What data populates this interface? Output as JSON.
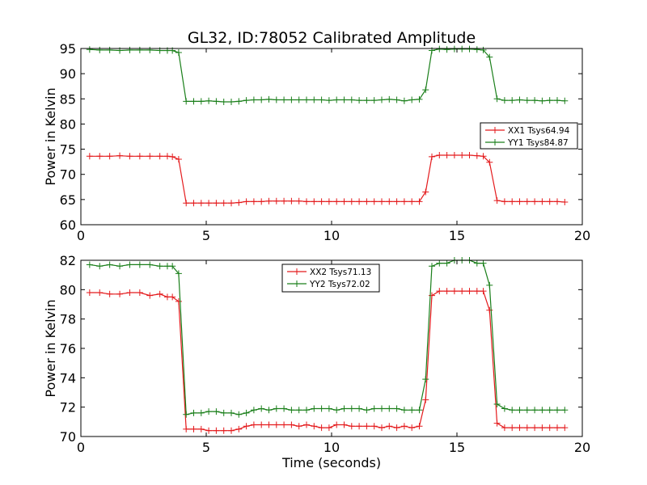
{
  "chart_data": [
    {
      "type": "line",
      "title": "GL32, ID:78052 Calibrated Amplitude",
      "xlabel": "",
      "ylabel": "Power in Kelvin",
      "xlim": [
        0,
        20
      ],
      "ylim": [
        60,
        95
      ],
      "xticks": [
        0,
        5,
        10,
        15,
        20
      ],
      "yticks": [
        60,
        65,
        70,
        75,
        80,
        85,
        90,
        95
      ],
      "grid": false,
      "legend_position": "center-right",
      "x": [
        0.35,
        0.75,
        1.15,
        1.55,
        1.95,
        2.35,
        2.75,
        3.15,
        3.45,
        3.65,
        3.9,
        4.2,
        4.5,
        4.8,
        5.1,
        5.4,
        5.7,
        6.0,
        6.3,
        6.6,
        6.9,
        7.2,
        7.5,
        7.8,
        8.1,
        8.4,
        8.7,
        9.0,
        9.3,
        9.6,
        9.9,
        10.2,
        10.5,
        10.8,
        11.1,
        11.4,
        11.7,
        12.0,
        12.3,
        12.6,
        12.9,
        13.2,
        13.5,
        13.75,
        14.0,
        14.3,
        14.6,
        14.9,
        15.2,
        15.5,
        15.8,
        16.05,
        16.3,
        16.6,
        16.9,
        17.2,
        17.5,
        17.8,
        18.1,
        18.4,
        18.7,
        19.0,
        19.3
      ],
      "series": [
        {
          "name": "XX1 Tsys64.94",
          "color": "#e41a1c",
          "values": [
            73.6,
            73.6,
            73.6,
            73.7,
            73.6,
            73.6,
            73.6,
            73.6,
            73.6,
            73.5,
            73.0,
            64.3,
            64.3,
            64.3,
            64.3,
            64.3,
            64.3,
            64.3,
            64.4,
            64.6,
            64.6,
            64.6,
            64.7,
            64.7,
            64.7,
            64.7,
            64.7,
            64.6,
            64.6,
            64.6,
            64.6,
            64.6,
            64.6,
            64.6,
            64.6,
            64.6,
            64.6,
            64.6,
            64.6,
            64.6,
            64.6,
            64.6,
            64.6,
            66.5,
            73.5,
            73.8,
            73.8,
            73.8,
            73.8,
            73.8,
            73.7,
            73.6,
            72.4,
            64.8,
            64.6,
            64.6,
            64.6,
            64.6,
            64.6,
            64.6,
            64.6,
            64.6,
            64.5
          ]
        },
        {
          "name": "YY1 Tsys84.87",
          "color": "#1a7f1a",
          "values": [
            94.8,
            94.7,
            94.7,
            94.6,
            94.7,
            94.7,
            94.7,
            94.6,
            94.6,
            94.6,
            94.2,
            84.5,
            84.5,
            84.5,
            84.6,
            84.5,
            84.4,
            84.4,
            84.5,
            84.7,
            84.8,
            84.8,
            84.9,
            84.8,
            84.8,
            84.8,
            84.8,
            84.8,
            84.8,
            84.8,
            84.7,
            84.8,
            84.8,
            84.8,
            84.7,
            84.7,
            84.7,
            84.8,
            84.9,
            84.8,
            84.6,
            84.8,
            84.9,
            86.8,
            94.6,
            94.9,
            94.8,
            94.9,
            94.9,
            94.9,
            94.8,
            94.7,
            93.3,
            85.0,
            84.7,
            84.7,
            84.8,
            84.7,
            84.7,
            84.6,
            84.7,
            84.7,
            84.6
          ]
        }
      ]
    },
    {
      "type": "line",
      "title": "",
      "xlabel": "Time (seconds)",
      "ylabel": "Power in Kelvin",
      "xlim": [
        0,
        20
      ],
      "ylim": [
        70,
        82
      ],
      "xticks": [
        0,
        5,
        10,
        15,
        20
      ],
      "yticks": [
        70,
        72,
        74,
        76,
        78,
        80,
        82
      ],
      "grid": false,
      "legend_position": "top-center",
      "x": [
        0.35,
        0.75,
        1.15,
        1.55,
        1.95,
        2.35,
        2.75,
        3.15,
        3.45,
        3.65,
        3.9,
        4.2,
        4.5,
        4.8,
        5.1,
        5.4,
        5.7,
        6.0,
        6.3,
        6.6,
        6.9,
        7.2,
        7.5,
        7.8,
        8.1,
        8.4,
        8.7,
        9.0,
        9.3,
        9.6,
        9.9,
        10.2,
        10.5,
        10.8,
        11.1,
        11.4,
        11.7,
        12.0,
        12.3,
        12.6,
        12.9,
        13.2,
        13.5,
        13.75,
        14.0,
        14.3,
        14.6,
        14.9,
        15.2,
        15.5,
        15.8,
        16.05,
        16.3,
        16.6,
        16.9,
        17.2,
        17.5,
        17.8,
        18.1,
        18.4,
        18.7,
        19.0,
        19.3
      ],
      "series": [
        {
          "name": "XX2 Tsys71.13",
          "color": "#e41a1c",
          "values": [
            79.8,
            79.8,
            79.7,
            79.7,
            79.8,
            79.8,
            79.6,
            79.7,
            79.5,
            79.5,
            79.2,
            70.5,
            70.5,
            70.5,
            70.4,
            70.4,
            70.4,
            70.4,
            70.5,
            70.7,
            70.8,
            70.8,
            70.8,
            70.8,
            70.8,
            70.8,
            70.7,
            70.8,
            70.7,
            70.6,
            70.6,
            70.8,
            70.8,
            70.7,
            70.7,
            70.7,
            70.7,
            70.6,
            70.7,
            70.6,
            70.7,
            70.6,
            70.7,
            72.5,
            79.6,
            79.9,
            79.9,
            79.9,
            79.9,
            79.9,
            79.9,
            79.9,
            78.6,
            70.9,
            70.6,
            70.6,
            70.6,
            70.6,
            70.6,
            70.6,
            70.6,
            70.6,
            70.6
          ]
        },
        {
          "name": "YY2 Tsys72.02",
          "color": "#1a7f1a",
          "values": [
            81.7,
            81.6,
            81.7,
            81.6,
            81.7,
            81.7,
            81.7,
            81.6,
            81.6,
            81.6,
            81.1,
            71.5,
            71.6,
            71.6,
            71.7,
            71.7,
            71.6,
            71.6,
            71.5,
            71.6,
            71.8,
            71.9,
            71.8,
            71.9,
            71.9,
            71.8,
            71.8,
            71.8,
            71.9,
            71.9,
            71.9,
            71.8,
            71.9,
            71.9,
            71.9,
            71.8,
            71.9,
            71.9,
            71.9,
            71.9,
            71.8,
            71.8,
            71.8,
            73.9,
            81.6,
            81.8,
            81.8,
            82.0,
            82.0,
            82.0,
            81.8,
            81.8,
            80.3,
            72.2,
            71.9,
            71.8,
            71.8,
            71.8,
            71.8,
            71.8,
            71.8,
            71.8,
            71.8
          ]
        }
      ]
    }
  ]
}
